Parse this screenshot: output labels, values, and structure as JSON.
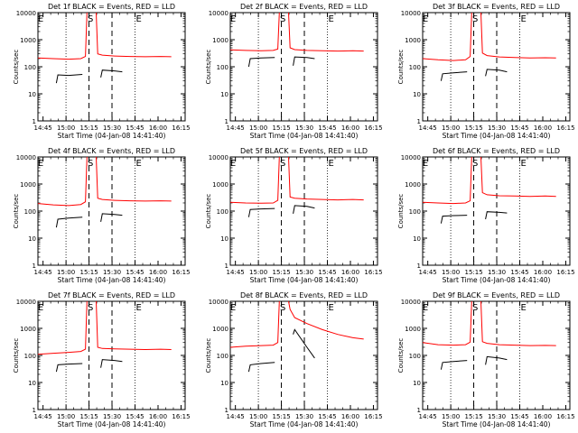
{
  "colors": {
    "events": "#000000",
    "lld": "#ff0000",
    "frame": "#000000",
    "background": "#ffffff"
  },
  "common": {
    "ylabel": "Counts/sec",
    "xlabel": "Start Time (04-Jan-08 14:41:40)",
    "xticks": [
      "14:45",
      "15:00",
      "15:15",
      "15:30",
      "15:45",
      "16:00",
      "16:15"
    ],
    "yticks": [
      "1",
      "10",
      "100",
      "1000",
      "10000"
    ],
    "marker_labels": [
      "E",
      "S",
      "E"
    ]
  },
  "chart_data": [
    {
      "type": "line",
      "title": "Det 1f BLACK = Events, RED = LLD",
      "y_scale": "log",
      "ylim": [
        1,
        10000
      ],
      "xlim_minutes_after_start": [
        0,
        96
      ],
      "dotted_lines_at_minutes": [
        18.3,
        63.3
      ],
      "dashed_lines_at_minutes": [
        33.3,
        48.3
      ],
      "series": [
        {
          "name": "LLD",
          "segments": [
            {
              "x": [
                0,
                10,
                20,
                28,
                31,
                32
              ],
              "y": [
                210,
                200,
                190,
                200,
                240,
                10000
              ]
            },
            {
              "x": [
                38,
                39,
                42,
                50,
                60,
                70,
                80,
                87
              ],
              "y": [
                10000,
                300,
                270,
                250,
                240,
                235,
                240,
                235
              ]
            }
          ]
        },
        {
          "name": "Events",
          "segments": [
            {
              "x": [
                12,
                13,
                20,
                29
              ],
              "y": [
                25,
                50,
                48,
                52
              ]
            },
            {
              "x": [
                41,
                42,
                50,
                55
              ],
              "y": [
                40,
                75,
                70,
                65
              ]
            }
          ]
        }
      ]
    },
    {
      "type": "line",
      "title": "Det 2f BLACK = Events, RED = LLD",
      "y_scale": "log",
      "ylim": [
        1,
        10000
      ],
      "xlim_minutes_after_start": [
        0,
        96
      ],
      "dotted_lines_at_minutes": [
        18.3,
        63.3
      ],
      "dashed_lines_at_minutes": [
        33.3,
        48.3
      ],
      "series": [
        {
          "name": "LLD",
          "segments": [
            {
              "x": [
                0,
                10,
                20,
                28,
                31,
                32
              ],
              "y": [
                420,
                400,
                390,
                400,
                450,
                10000
              ]
            },
            {
              "x": [
                38,
                39,
                42,
                50,
                60,
                70,
                80,
                87
              ],
              "y": [
                10000,
                500,
                430,
                400,
                390,
                380,
                390,
                380
              ]
            }
          ]
        },
        {
          "name": "Events",
          "segments": [
            {
              "x": [
                12,
                13,
                20,
                29
              ],
              "y": [
                100,
                200,
                210,
                220
              ]
            },
            {
              "x": [
                41,
                42,
                50,
                55
              ],
              "y": [
                110,
                230,
                220,
                200
              ]
            }
          ]
        }
      ]
    },
    {
      "type": "line",
      "title": "Det 3f BLACK = Events, RED = LLD",
      "y_scale": "log",
      "ylim": [
        1,
        10000
      ],
      "xlim_minutes_after_start": [
        0,
        96
      ],
      "dotted_lines_at_minutes": [
        18.3,
        63.3
      ],
      "dashed_lines_at_minutes": [
        33.3,
        48.3
      ],
      "series": [
        {
          "name": "LLD",
          "segments": [
            {
              "x": [
                0,
                10,
                20,
                28,
                31,
                32
              ],
              "y": [
                200,
                180,
                170,
                180,
                240,
                10000
              ]
            },
            {
              "x": [
                38,
                39,
                42,
                50,
                60,
                70,
                80,
                87
              ],
              "y": [
                10000,
                320,
                260,
                230,
                220,
                210,
                215,
                210
              ]
            }
          ]
        },
        {
          "name": "Events",
          "segments": [
            {
              "x": [
                12,
                13,
                20,
                29
              ],
              "y": [
                30,
                55,
                60,
                65
              ]
            },
            {
              "x": [
                41,
                42,
                50,
                55
              ],
              "y": [
                45,
                80,
                75,
                65
              ]
            }
          ]
        }
      ]
    },
    {
      "type": "line",
      "title": "Det 4f BLACK = Events, RED = LLD",
      "y_scale": "log",
      "ylim": [
        1,
        10000
      ],
      "xlim_minutes_after_start": [
        0,
        96
      ],
      "dotted_lines_at_minutes": [
        18.3,
        63.3
      ],
      "dashed_lines_at_minutes": [
        33.3,
        48.3
      ],
      "series": [
        {
          "name": "LLD",
          "segments": [
            {
              "x": [
                0,
                10,
                20,
                28,
                31,
                32
              ],
              "y": [
                190,
                170,
                160,
                175,
                220,
                10000
              ]
            },
            {
              "x": [
                38,
                39,
                42,
                50,
                60,
                70,
                80,
                87
              ],
              "y": [
                10000,
                300,
                270,
                250,
                240,
                235,
                240,
                235
              ]
            }
          ]
        },
        {
          "name": "Events",
          "segments": [
            {
              "x": [
                12,
                13,
                20,
                29
              ],
              "y": [
                25,
                50,
                55,
                60
              ]
            },
            {
              "x": [
                41,
                42,
                50,
                55
              ],
              "y": [
                40,
                80,
                75,
                70
              ]
            }
          ]
        }
      ]
    },
    {
      "type": "line",
      "title": "Det 5f BLACK = Events, RED = LLD",
      "y_scale": "log",
      "ylim": [
        1,
        10000
      ],
      "xlim_minutes_after_start": [
        0,
        96
      ],
      "dotted_lines_at_minutes": [
        18.3,
        63.3
      ],
      "dashed_lines_at_minutes": [
        33.3,
        48.3
      ],
      "series": [
        {
          "name": "LLD",
          "segments": [
            {
              "x": [
                0,
                10,
                20,
                28,
                31,
                32
              ],
              "y": [
                210,
                200,
                195,
                200,
                250,
                10000
              ]
            },
            {
              "x": [
                38,
                39,
                42,
                50,
                60,
                70,
                80,
                87
              ],
              "y": [
                10000,
                330,
                300,
                280,
                270,
                260,
                270,
                260
              ]
            }
          ]
        },
        {
          "name": "Events",
          "segments": [
            {
              "x": [
                12,
                13,
                20,
                29
              ],
              "y": [
                60,
                115,
                120,
                125
              ]
            },
            {
              "x": [
                41,
                42,
                50,
                55
              ],
              "y": [
                80,
                160,
                150,
                130
              ]
            }
          ]
        }
      ]
    },
    {
      "type": "line",
      "title": "Det 6f BLACK = Events, RED = LLD",
      "y_scale": "log",
      "ylim": [
        1,
        10000
      ],
      "xlim_minutes_after_start": [
        0,
        96
      ],
      "dotted_lines_at_minutes": [
        18.3,
        63.3
      ],
      "dashed_lines_at_minutes": [
        33.3,
        48.3
      ],
      "series": [
        {
          "name": "LLD",
          "segments": [
            {
              "x": [
                0,
                10,
                20,
                28,
                31,
                32
              ],
              "y": [
                210,
                200,
                190,
                200,
                240,
                10000
              ]
            },
            {
              "x": [
                38,
                39,
                42,
                50,
                60,
                70,
                80,
                87
              ],
              "y": [
                10000,
                480,
                400,
                370,
                360,
                350,
                360,
                350
              ]
            }
          ]
        },
        {
          "name": "Events",
          "segments": [
            {
              "x": [
                12,
                13,
                20,
                29
              ],
              "y": [
                35,
                65,
                68,
                70
              ]
            },
            {
              "x": [
                41,
                42,
                50,
                55
              ],
              "y": [
                50,
                95,
                90,
                85
              ]
            }
          ]
        }
      ]
    },
    {
      "type": "line",
      "title": "Det 7f BLACK = Events, RED = LLD",
      "y_scale": "log",
      "ylim": [
        1,
        10000
      ],
      "xlim_minutes_after_start": [
        0,
        96
      ],
      "dotted_lines_at_minutes": [
        18.3,
        63.3
      ],
      "dashed_lines_at_minutes": [
        33.3,
        48.3
      ],
      "series": [
        {
          "name": "LLD",
          "segments": [
            {
              "x": [
                0,
                10,
                20,
                28,
                31,
                32
              ],
              "y": [
                110,
                120,
                130,
                140,
                170,
                10000
              ]
            },
            {
              "x": [
                38,
                39,
                42,
                50,
                60,
                70,
                80,
                87
              ],
              "y": [
                10000,
                200,
                180,
                175,
                170,
                165,
                170,
                165
              ]
            }
          ]
        },
        {
          "name": "Events",
          "segments": [
            {
              "x": [
                12,
                13,
                20,
                29
              ],
              "y": [
                25,
                45,
                48,
                50
              ]
            },
            {
              "x": [
                41,
                42,
                50,
                55
              ],
              "y": [
                35,
                70,
                65,
                60
              ]
            }
          ]
        }
      ]
    },
    {
      "type": "line",
      "title": "Det 8f BLACK = Events, RED = LLD",
      "y_scale": "log",
      "ylim": [
        1,
        10000
      ],
      "xlim_minutes_after_start": [
        0,
        96
      ],
      "dotted_lines_at_minutes": [
        18.3,
        63.3
      ],
      "dashed_lines_at_minutes": [
        33.3,
        48.3
      ],
      "series": [
        {
          "name": "LLD",
          "segments": [
            {
              "x": [
                0,
                10,
                20,
                28,
                31,
                32
              ],
              "y": [
                200,
                220,
                230,
                240,
                300,
                10000
              ]
            },
            {
              "x": [
                38,
                39,
                42,
                50,
                60,
                70,
                80,
                87
              ],
              "y": [
                10000,
                5000,
                2500,
                1500,
                900,
                600,
                450,
                400
              ]
            }
          ]
        },
        {
          "name": "Events",
          "segments": [
            {
              "x": [
                12,
                13,
                20,
                29
              ],
              "y": [
                25,
                45,
                50,
                55
              ]
            },
            {
              "x": [
                41,
                42,
                50,
                55
              ],
              "y": [
                600,
                900,
                200,
                80
              ]
            }
          ]
        }
      ]
    },
    {
      "type": "line",
      "title": "Det 9f BLACK = Events, RED = LLD",
      "y_scale": "log",
      "ylim": [
        1,
        10000
      ],
      "xlim_minutes_after_start": [
        0,
        96
      ],
      "dotted_lines_at_minutes": [
        18.3,
        63.3
      ],
      "dashed_lines_at_minutes": [
        33.3,
        48.3
      ],
      "series": [
        {
          "name": "LLD",
          "segments": [
            {
              "x": [
                0,
                10,
                20,
                28,
                31,
                32
              ],
              "y": [
                300,
                250,
                240,
                250,
                310,
                10000
              ]
            },
            {
              "x": [
                38,
                39,
                42,
                50,
                60,
                70,
                80,
                87
              ],
              "y": [
                10000,
                320,
                280,
                250,
                240,
                230,
                235,
                230
              ]
            }
          ]
        },
        {
          "name": "Events",
          "segments": [
            {
              "x": [
                12,
                13,
                20,
                29
              ],
              "y": [
                30,
                55,
                60,
                65
              ]
            },
            {
              "x": [
                41,
                42,
                50,
                55
              ],
              "y": [
                45,
                90,
                80,
                70
              ]
            }
          ]
        }
      ]
    }
  ]
}
